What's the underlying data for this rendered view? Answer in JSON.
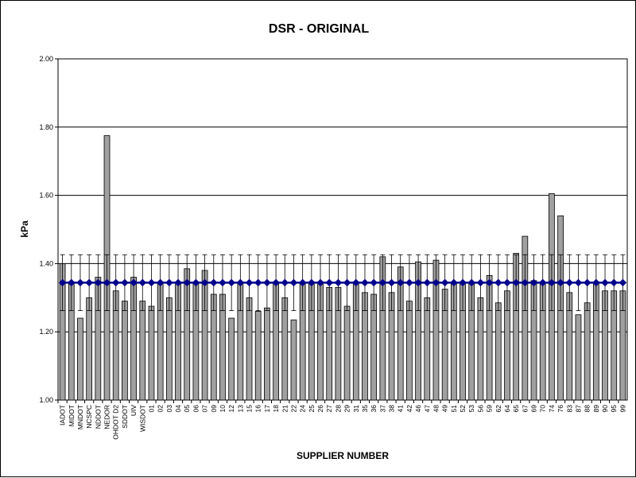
{
  "chart_data": {
    "type": "bar",
    "title": "DSR - ORIGINAL",
    "xlabel": "SUPPLIER NUMBER",
    "ylabel": "kPa",
    "ylim": [
      1.0,
      2.0
    ],
    "yticks": [
      "1.00",
      "1.20",
      "1.40",
      "1.60",
      "1.80",
      "2.00"
    ],
    "grid": true,
    "legend": "none",
    "categories": [
      "IADOT",
      "MIDOT",
      "MNDOT",
      "NCSPC",
      "NDDOT",
      "NEDOR",
      "OHDOT D2",
      "SDDOT",
      "UIV",
      "WISDOT",
      "01",
      "02",
      "03",
      "04",
      "05",
      "06",
      "07",
      "09",
      "10",
      "12",
      "13",
      "15",
      "16",
      "17",
      "18",
      "21",
      "22",
      "24",
      "25",
      "26",
      "27",
      "28",
      "29",
      "31",
      "35",
      "36",
      "37",
      "38",
      "41",
      "42",
      "46",
      "47",
      "48",
      "49",
      "51",
      "52",
      "53",
      "56",
      "59",
      "62",
      "64",
      "65",
      "67",
      "69",
      "70",
      "74",
      "76",
      "83",
      "87",
      "88",
      "89",
      "90",
      "95",
      "99"
    ],
    "series": [
      {
        "type": "bar",
        "color": "#a0a0a0",
        "values": [
          1.4,
          1.34,
          1.24,
          1.3,
          1.36,
          1.775,
          1.32,
          1.29,
          1.36,
          1.29,
          1.275,
          1.34,
          1.3,
          1.34,
          1.385,
          1.34,
          1.38,
          1.31,
          1.31,
          1.24,
          1.34,
          1.3,
          1.26,
          1.27,
          1.34,
          1.3,
          1.235,
          1.34,
          1.34,
          1.34,
          1.33,
          1.33,
          1.275,
          1.34,
          1.315,
          1.31,
          1.42,
          1.315,
          1.39,
          1.29,
          1.405,
          1.3,
          1.41,
          1.325,
          1.34,
          1.34,
          1.34,
          1.3,
          1.365,
          1.285,
          1.32,
          1.43,
          1.48,
          1.35,
          1.34,
          1.605,
          1.54,
          1.315,
          1.25,
          1.285,
          1.34,
          1.32,
          1.32,
          1.32
        ]
      },
      {
        "type": "line",
        "marker": "diamond",
        "color": "#00008b",
        "value": 1.344,
        "error_bar": 0.082
      }
    ]
  }
}
